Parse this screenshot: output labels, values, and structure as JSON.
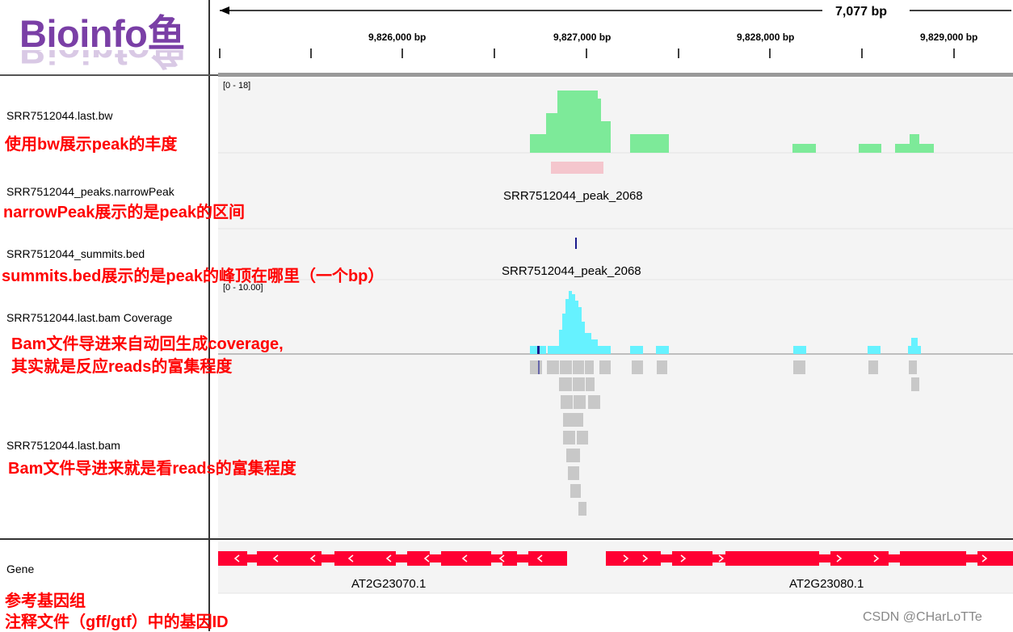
{
  "logo": {
    "text": "Bioinfo鱼"
  },
  "ruler": {
    "span_label": "7,077 bp",
    "ticks": [
      {
        "label": "9,826,000 bp"
      },
      {
        "label": "9,827,000 bp"
      },
      {
        "label": "9,828,000 bp"
      },
      {
        "label": "9,829,000 bp"
      }
    ]
  },
  "tracks": {
    "bw": {
      "name": "SRR7512044.last.bw",
      "annotation": "使用bw展示peak的丰度",
      "range": "[0 - 18]",
      "color": "#7dea99"
    },
    "narrowpeak": {
      "name": "SRR7512044_peaks.narrowPeak",
      "annotation": "narrowPeak展示的是peak的区间",
      "feature_label": "SRR7512044_peak_2068",
      "color": "#f4c6cd"
    },
    "summits": {
      "name": "SRR7512044_summits.bed",
      "annotation": "summits.bed展示的是peak的峰顶在哪里（一个bp）",
      "feature_label": "SRR7512044_peak_2068",
      "color": "#1a1a8c"
    },
    "coverage": {
      "name": "SRR7512044.last.bam Coverage",
      "annotation_line1": "Bam文件导进来自动回生成coverage,",
      "annotation_line2": "其实就是反应reads的富集程度",
      "range": "[0 - 10.00]",
      "color": "#66f2ff"
    },
    "bam": {
      "name": "SRR7512044.last.bam",
      "annotation": "Bam文件导进来就是看reads的富集程度",
      "color": "#c8c8c8"
    },
    "gene": {
      "name": "Gene",
      "annotation_line1": "参考基因组",
      "annotation_line2": "注释文件（gff/gtf）中的基因ID",
      "genes": [
        {
          "label": "AT2G23070.1"
        },
        {
          "label": "AT2G23080.1"
        }
      ],
      "color": "#ff0033"
    }
  },
  "watermark": "CSDN @CHarLoTTe"
}
